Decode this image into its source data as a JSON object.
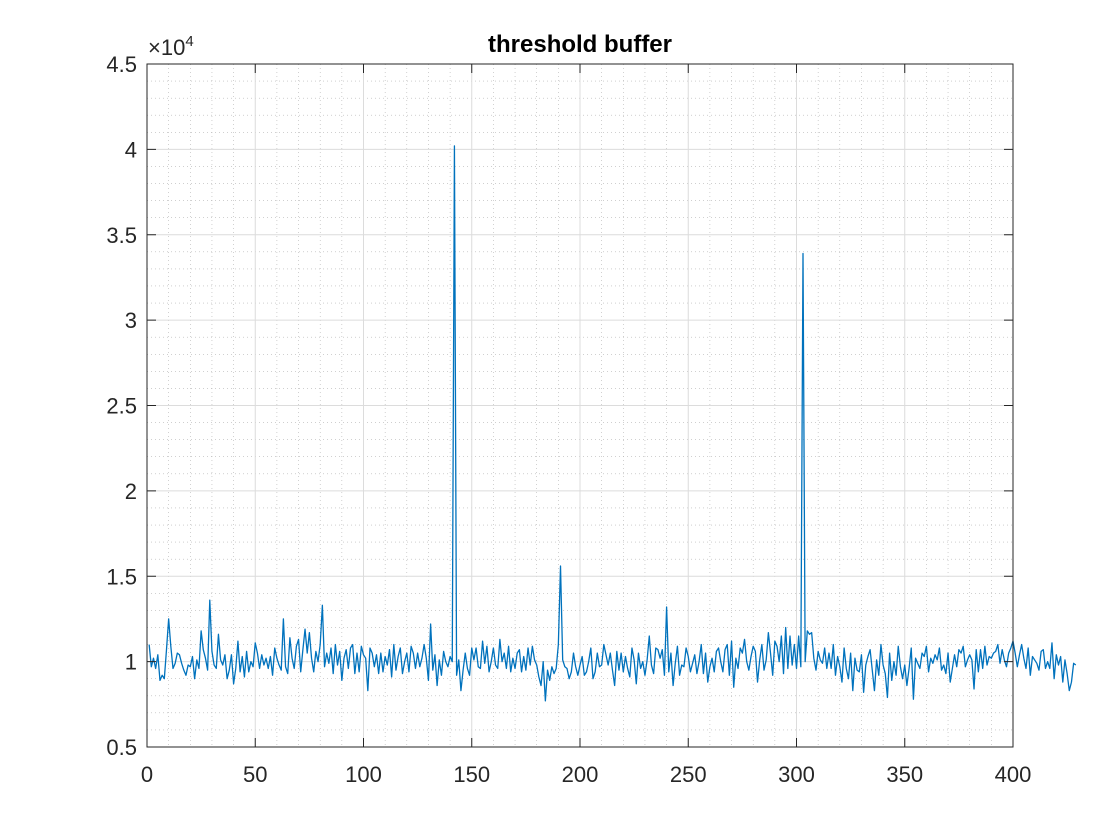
{
  "chart_data": {
    "type": "line",
    "title": "threshold buffer",
    "xlabel": "",
    "ylabel": "",
    "xlim": [
      0,
      400
    ],
    "ylim": [
      5000,
      45000
    ],
    "x_ticks": [
      0,
      50,
      100,
      150,
      200,
      250,
      300,
      350,
      400
    ],
    "y_ticks": [
      5000,
      10000,
      15000,
      20000,
      25000,
      30000,
      35000,
      40000,
      45000
    ],
    "x_tick_labels": [
      "0",
      "50",
      "100",
      "150",
      "200",
      "250",
      "300",
      "350",
      "400"
    ],
    "y_tick_labels": [
      "0.5",
      "1",
      "1.5",
      "2",
      "2.5",
      "3",
      "3.5",
      "4",
      "4.5"
    ],
    "y_exponent_label": {
      "base": "×10",
      "power": "4"
    },
    "grid": "major-and-minor",
    "line_color": "#0072BD",
    "series": [
      {
        "x_start": 1,
        "x_step": 1,
        "values": [
          11000,
          9700,
          10200,
          9600,
          10400,
          8900,
          9200,
          9000,
          10700,
          12500,
          10900,
          9600,
          9900,
          10500,
          10400,
          9900,
          9500,
          9200,
          9800,
          9700,
          10300,
          9000,
          10100,
          9600,
          11800,
          10700,
          10200,
          9500,
          13600,
          10600,
          9800,
          9600,
          11600,
          10100,
          9800,
          10400,
          9000,
          9500,
          10400,
          8700,
          9600,
          11200,
          9400,
          10300,
          9100,
          10600,
          9400,
          10000,
          9700,
          11100,
          10500,
          9600,
          10400,
          9800,
          10200,
          9600,
          10300,
          9200,
          10800,
          10200,
          9800,
          9500,
          12500,
          9700,
          9300,
          11400,
          10200,
          9600,
          10900,
          11300,
          9400,
          10700,
          11900,
          10500,
          11700,
          10200,
          9400,
          10600,
          10000,
          11000,
          13300,
          9700,
          10500,
          9900,
          10800,
          9300,
          11000,
          9800,
          10600,
          8900,
          10200,
          10700,
          9600,
          10800,
          11000,
          9300,
          10500,
          9400,
          10900,
          10400,
          10200,
          8300,
          10800,
          10500,
          9700,
          10400,
          9300,
          10500,
          9400,
          10300,
          9800,
          10700,
          9100,
          11000,
          9500,
          10300,
          10800,
          9300,
          10000,
          10500,
          9400,
          10900,
          10500,
          9600,
          10500,
          9700,
          10200,
          11000,
          10200,
          8900,
          12200,
          9500,
          10400,
          8600,
          10100,
          9200,
          10600,
          10000,
          9700,
          10300,
          10000,
          40200,
          9200,
          10100,
          8300,
          9500,
          10500,
          9600,
          9200,
          10800,
          10100,
          10800,
          9700,
          9600,
          11200,
          9900,
          10900,
          9400,
          10000,
          10800,
          9800,
          9600,
          11300,
          10000,
          10500,
          9600,
          10900,
          9400,
          10200,
          9600,
          10500,
          10700,
          9400,
          10300,
          9500,
          10800,
          9800,
          10900,
          10100,
          9800,
          9100,
          8600,
          10000,
          7700,
          9500,
          8900,
          9700,
          9300,
          9600,
          11000,
          15600,
          10100,
          9700,
          9600,
          9000,
          9400,
          10500,
          9700,
          9200,
          9800,
          10300,
          9200,
          9400,
          10000,
          10800,
          9000,
          9400,
          10500,
          9700,
          9800,
          11000,
          10400,
          9800,
          10500,
          9500,
          8600,
          10600,
          9500,
          10500,
          9400,
          10300,
          9600,
          9100,
          10800,
          10100,
          8700,
          10500,
          9600,
          10000,
          9200,
          10100,
          11500,
          9800,
          9300,
          10800,
          10700,
          10200,
          10700,
          9200,
          13200,
          9400,
          10500,
          8600,
          9900,
          10900,
          9200,
          9800,
          9700,
          10800,
          10300,
          9400,
          9900,
          10400,
          9300,
          10000,
          11000,
          9300,
          10500,
          8800,
          9700,
          10200,
          9400,
          10600,
          10800,
          10000,
          9400,
          10700,
          11000,
          9200,
          11200,
          8500,
          10200,
          9600,
          10800,
          10500,
          11300,
          10000,
          9500,
          10300,
          10900,
          10600,
          8800,
          10100,
          11000,
          9500,
          10100,
          11700,
          10500,
          9200,
          11200,
          10900,
          10000,
          11500,
          9300,
          12000,
          9600,
          11500,
          9800,
          11000,
          9600,
          11500,
          9700,
          33900,
          10000,
          11800,
          11600,
          11700,
          10200,
          9500,
          10600,
          10100,
          9900,
          10800,
          9600,
          10500,
          9600,
          11000,
          9200,
          10300,
          9700,
          8800,
          10800,
          9600,
          9000,
          10500,
          8300,
          10200,
          9500,
          9400,
          10400,
          8200,
          9800,
          10300,
          10700,
          9500,
          8300,
          10100,
          9200,
          11000,
          9800,
          9300,
          7900,
          10500,
          8900,
          10000,
          9200,
          10900,
          9700,
          9000,
          9800,
          8600,
          9600,
          10800,
          7800,
          10200,
          9900,
          9600,
          10500,
          10300,
          10900,
          9400,
          10200,
          9900,
          10400,
          10100,
          10800,
          9500,
          9800,
          9300,
          10500,
          8800,
          9600,
          10400,
          9700,
          10700,
          10500,
          10900,
          9700,
          10100,
          10400,
          10100,
          8400,
          10700,
          9400,
          10700,
          9600,
          10900,
          9800,
          10300,
          10200,
          10500,
          10600,
          11000,
          9900,
          10700,
          10100,
          9700,
          10500,
          10800,
          11200,
          10500,
          9700,
          10400,
          11000,
          10200,
          9600,
          10800,
          9200,
          10300,
          10100,
          9900,
          9500,
          10600,
          10700,
          9600,
          10000,
          9600,
          11100,
          9000,
          10400,
          9800,
          10300,
          8800,
          10100,
          9300,
          8300,
          8800,
          9900,
          9800
        ]
      }
    ]
  }
}
